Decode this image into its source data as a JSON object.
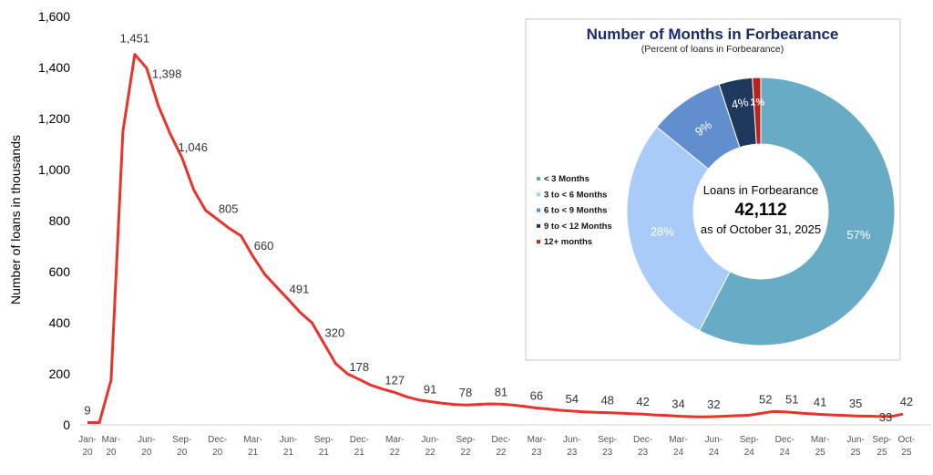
{
  "chart_data": [
    {
      "type": "line",
      "ylabel": "Number of loans in thousands",
      "ylim": [
        0,
        1600
      ],
      "yticks": [
        0,
        200,
        400,
        600,
        800,
        1000,
        1200,
        1400,
        1600
      ],
      "xtick_labels": [
        "Jan-20",
        "Mar-20",
        "Jun-20",
        "Sep-20",
        "Dec-20",
        "Mar-21",
        "Jun-21",
        "Sep-21",
        "Dec-21",
        "Mar-22",
        "Jun-22",
        "Sep-22",
        "Dec-22",
        "Mar-23",
        "Jun-23",
        "Sep-23",
        "Dec-23",
        "Mar-24",
        "Jun-24",
        "Sep-24",
        "Dec-24",
        "Mar-25",
        "Jun-25",
        "Sep-25",
        "Oct-25"
      ],
      "x": [
        "Jan-20",
        "Feb-20",
        "Mar-20",
        "Apr-20",
        "May-20",
        "Jun-20",
        "Jul-20",
        "Aug-20",
        "Sep-20",
        "Oct-20",
        "Nov-20",
        "Dec-20",
        "Jan-21",
        "Feb-21",
        "Mar-21",
        "Apr-21",
        "May-21",
        "Jun-21",
        "Jul-21",
        "Aug-21",
        "Sep-21",
        "Oct-21",
        "Nov-21",
        "Dec-21",
        "Jan-22",
        "Feb-22",
        "Mar-22",
        "Apr-22",
        "May-22",
        "Jun-22",
        "Jul-22",
        "Aug-22",
        "Sep-22",
        "Oct-22",
        "Nov-22",
        "Dec-22",
        "Jan-23",
        "Feb-23",
        "Mar-23",
        "Apr-23",
        "May-23",
        "Jun-23",
        "Jul-23",
        "Aug-23",
        "Sep-23",
        "Oct-23",
        "Nov-23",
        "Dec-23",
        "Jan-24",
        "Feb-24",
        "Mar-24",
        "Apr-24",
        "May-24",
        "Jun-24",
        "Jul-24",
        "Aug-24",
        "Sep-24",
        "Oct-24",
        "Nov-24",
        "Dec-24",
        "Jan-25",
        "Feb-25",
        "Mar-25",
        "Apr-25",
        "May-25",
        "Jun-25",
        "Jul-25",
        "Aug-25",
        "Sep-25",
        "Oct-25"
      ],
      "values": [
        9,
        9,
        175,
        1150,
        1451,
        1398,
        1250,
        1140,
        1046,
        920,
        840,
        805,
        770,
        740,
        660,
        590,
        540,
        491,
        440,
        400,
        320,
        240,
        200,
        178,
        155,
        140,
        127,
        110,
        98,
        91,
        85,
        80,
        78,
        80,
        82,
        81,
        78,
        72,
        66,
        62,
        57,
        54,
        51,
        49,
        48,
        46,
        44,
        42,
        39,
        37,
        34,
        32,
        31,
        32,
        34,
        36,
        38,
        45,
        52,
        51,
        47,
        44,
        41,
        39,
        37,
        35,
        34,
        33,
        33,
        42
      ],
      "data_labels": [
        {
          "x": "Jan-20",
          "label": "9"
        },
        {
          "x": "May-20",
          "label": "1,451"
        },
        {
          "x": "Jun-20",
          "label": "1,398"
        },
        {
          "x": "Sep-20",
          "label": "1,046"
        },
        {
          "x": "Dec-20",
          "label": "805"
        },
        {
          "x": "Mar-21",
          "label": "660"
        },
        {
          "x": "Jun-21",
          "label": "491"
        },
        {
          "x": "Sep-21",
          "label": "320"
        },
        {
          "x": "Dec-21",
          "label": "178"
        },
        {
          "x": "Mar-22",
          "label": "127"
        },
        {
          "x": "Jun-22",
          "label": "91"
        },
        {
          "x": "Sep-22",
          "label": "78"
        },
        {
          "x": "Dec-22",
          "label": "81"
        },
        {
          "x": "Mar-23",
          "label": "66"
        },
        {
          "x": "Jun-23",
          "label": "54"
        },
        {
          "x": "Sep-23",
          "label": "48"
        },
        {
          "x": "Dec-23",
          "label": "42"
        },
        {
          "x": "Mar-24",
          "label": "34"
        },
        {
          "x": "Jun-24",
          "label": "32"
        },
        {
          "x": "Nov-24",
          "label": "52"
        },
        {
          "x": "Dec-24",
          "label": "51"
        },
        {
          "x": "Mar-25",
          "label": "41"
        },
        {
          "x": "Jun-25",
          "label": "35"
        },
        {
          "x": "Sep-25",
          "label": "33"
        },
        {
          "x": "Oct-25",
          "label": "42"
        }
      ],
      "grid": false,
      "line_color": "#e8342b"
    },
    {
      "type": "pie",
      "title": "Number of Months in Forbearance",
      "subtitle": "(Percent of loans in Forbearance)",
      "donut": true,
      "center_text": {
        "line1": "Loans in Forbearance",
        "value": "42,112",
        "line3": "as of October 31, 2025"
      },
      "slices": [
        {
          "name": "< 3 Months",
          "value": 57,
          "label": "57%",
          "color": "#68abc5"
        },
        {
          "name": "3 to < 6 Months",
          "value": 28,
          "label": "28%",
          "color": "#a8cbf7"
        },
        {
          "name": "6 to < 9 Months",
          "value": 9,
          "label": "9%",
          "color": "#618ecf"
        },
        {
          "name": "9 to < 12 Months",
          "value": 4,
          "label": "4%",
          "color": "#1f385e"
        },
        {
          "name": "12+ months",
          "value": 1,
          "label": "1%",
          "color": "#b8231c"
        }
      ],
      "legend_position": "left",
      "title_color": "#1a2a6c"
    }
  ]
}
